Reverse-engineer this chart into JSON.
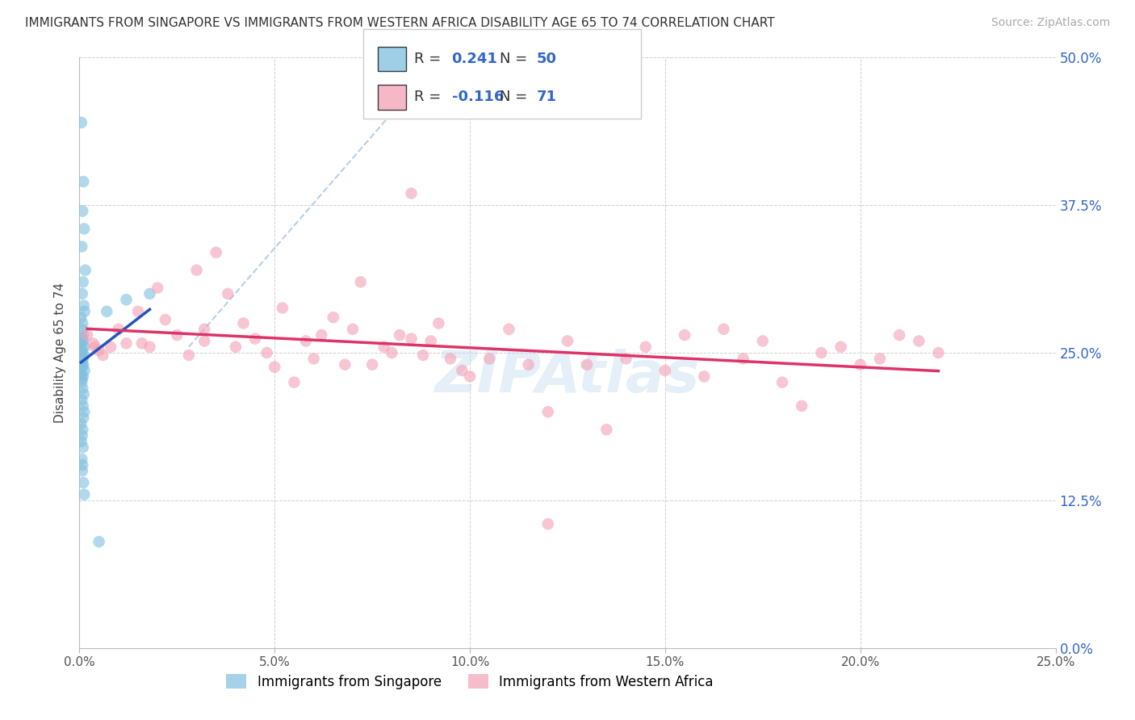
{
  "title": "IMMIGRANTS FROM SINGAPORE VS IMMIGRANTS FROM WESTERN AFRICA DISABILITY AGE 65 TO 74 CORRELATION CHART",
  "source": "Source: ZipAtlas.com",
  "ylabel": "Disability Age 65 to 74",
  "x_tick_labels": [
    "0.0%",
    "5.0%",
    "10.0%",
    "15.0%",
    "20.0%",
    "25.0%"
  ],
  "x_tick_values": [
    0.0,
    5.0,
    10.0,
    15.0,
    20.0,
    25.0
  ],
  "y_tick_labels": [
    "0.0%",
    "12.5%",
    "25.0%",
    "37.5%",
    "50.0%"
  ],
  "y_tick_values": [
    0.0,
    12.5,
    25.0,
    37.5,
    50.0
  ],
  "xlim": [
    0.0,
    25.0
  ],
  "ylim": [
    0.0,
    50.0
  ],
  "R_singapore": 0.241,
  "N_singapore": 50,
  "R_western_africa": -0.116,
  "N_western_africa": 71,
  "color_singapore": "#7fbfdf",
  "color_western_africa": "#f4a0b5",
  "trend_singapore_color": "#2255bb",
  "trend_western_africa_color": "#dd3366",
  "trend_dashed_color": "#a8c8e8",
  "legend_label_singapore": "Immigrants from Singapore",
  "legend_label_western_africa": "Immigrants from Western Africa",
  "sg_x": [
    0.05,
    0.1,
    0.08,
    0.12,
    0.06,
    0.15,
    0.09,
    0.07,
    0.11,
    0.13,
    0.04,
    0.08,
    0.06,
    0.1,
    0.07,
    0.09,
    0.05,
    0.12,
    0.08,
    0.06,
    0.11,
    0.09,
    0.07,
    0.1,
    0.08,
    0.13,
    0.05,
    0.09,
    0.07,
    0.06,
    0.08,
    0.11,
    0.06,
    0.09,
    0.12,
    0.1,
    0.04,
    0.08,
    0.07,
    0.05,
    0.09,
    0.06,
    0.08,
    0.07,
    0.1,
    0.12,
    1.8,
    0.7,
    1.2,
    0.5
  ],
  "sg_y": [
    44.5,
    39.5,
    37.0,
    35.5,
    34.0,
    32.0,
    31.0,
    30.0,
    29.0,
    28.5,
    28.0,
    27.5,
    27.0,
    26.5,
    26.2,
    26.0,
    25.8,
    25.5,
    25.2,
    25.0,
    24.8,
    24.5,
    24.2,
    24.0,
    23.8,
    23.5,
    23.2,
    23.0,
    22.8,
    22.5,
    22.0,
    21.5,
    21.0,
    20.5,
    20.0,
    19.5,
    19.0,
    18.5,
    18.0,
    17.5,
    17.0,
    16.0,
    15.5,
    15.0,
    14.0,
    13.0,
    30.0,
    28.5,
    29.5,
    9.0
  ],
  "wa_x": [
    0.2,
    0.35,
    0.5,
    0.6,
    0.8,
    1.0,
    1.2,
    1.5,
    1.8,
    2.0,
    2.2,
    2.5,
    2.8,
    3.0,
    3.2,
    3.5,
    3.8,
    4.0,
    4.2,
    4.5,
    4.8,
    5.0,
    5.2,
    5.5,
    5.8,
    6.0,
    6.2,
    6.5,
    6.8,
    7.0,
    7.2,
    7.5,
    7.8,
    8.0,
    8.2,
    8.5,
    8.8,
    9.0,
    9.2,
    9.5,
    9.8,
    10.0,
    10.5,
    11.0,
    11.5,
    12.0,
    12.5,
    13.0,
    13.5,
    14.0,
    14.5,
    15.0,
    15.5,
    16.0,
    16.5,
    17.0,
    17.5,
    18.0,
    18.5,
    19.0,
    19.5,
    20.0,
    20.5,
    21.0,
    21.5,
    22.0,
    0.4,
    1.6,
    3.2,
    8.5,
    12.0
  ],
  "wa_y": [
    26.5,
    25.8,
    25.2,
    24.8,
    25.5,
    27.0,
    25.8,
    28.5,
    25.5,
    30.5,
    27.8,
    26.5,
    24.8,
    32.0,
    27.0,
    33.5,
    30.0,
    25.5,
    27.5,
    26.2,
    25.0,
    23.8,
    28.8,
    22.5,
    26.0,
    24.5,
    26.5,
    28.0,
    24.0,
    27.0,
    31.0,
    24.0,
    25.5,
    25.0,
    26.5,
    26.2,
    24.8,
    26.0,
    27.5,
    24.5,
    23.5,
    23.0,
    24.5,
    27.0,
    24.0,
    20.0,
    26.0,
    24.0,
    18.5,
    24.5,
    25.5,
    23.5,
    26.5,
    23.0,
    27.0,
    24.5,
    26.0,
    22.5,
    20.5,
    25.0,
    25.5,
    24.0,
    24.5,
    26.5,
    26.0,
    25.0,
    25.5,
    25.8,
    26.0,
    38.5,
    10.5
  ],
  "dashed_line": [
    [
      2.8,
      9.5
    ],
    [
      25.5,
      51.0
    ]
  ],
  "watermark_text": "ZIPAtlas",
  "watermark_color": "#c0d8ee",
  "watermark_alpha": 0.4
}
